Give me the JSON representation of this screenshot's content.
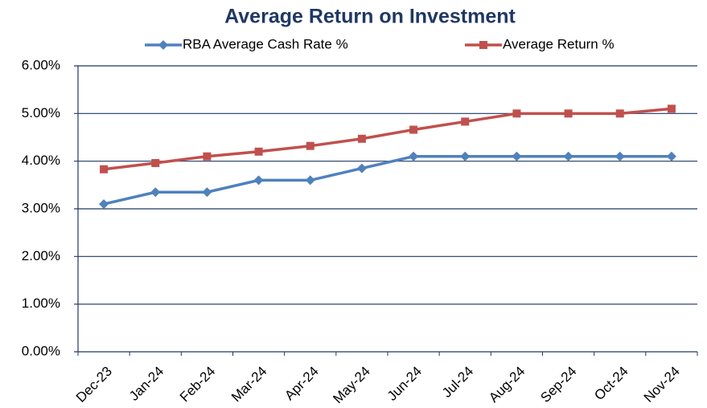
{
  "chart_data": {
    "type": "line",
    "title": "Average Return on Investment",
    "categories": [
      "Dec-23",
      "Jan-24",
      "Feb-24",
      "Mar-24",
      "Apr-24",
      "May-24",
      "Jun-24",
      "Jul-24",
      "Aug-24",
      "Sep-24",
      "Oct-24",
      "Nov-24"
    ],
    "series": [
      {
        "name": "RBA Average Cash Rate %",
        "color": "#4f81bd",
        "marker": "diamond",
        "values": [
          3.1,
          3.35,
          3.35,
          3.6,
          3.6,
          3.85,
          4.1,
          4.1,
          4.1,
          4.1,
          4.1,
          4.1
        ]
      },
      {
        "name": "Average Return %",
        "color": "#c0504d",
        "marker": "square",
        "values": [
          3.83,
          3.96,
          4.1,
          4.2,
          4.32,
          4.47,
          4.66,
          4.83,
          5.0,
          5.0,
          5.0,
          5.1
        ]
      }
    ],
    "ylim": [
      0,
      6
    ],
    "yticks": [
      {
        "value": 0,
        "label": "0.00%"
      },
      {
        "value": 1,
        "label": "1.00%"
      },
      {
        "value": 2,
        "label": "2.00%"
      },
      {
        "value": 3,
        "label": "3.00%"
      },
      {
        "value": 4,
        "label": "4.00%"
      },
      {
        "value": 5,
        "label": "5.00%"
      },
      {
        "value": 6,
        "label": "6.00%"
      }
    ],
    "grid": true,
    "legend": "top"
  }
}
